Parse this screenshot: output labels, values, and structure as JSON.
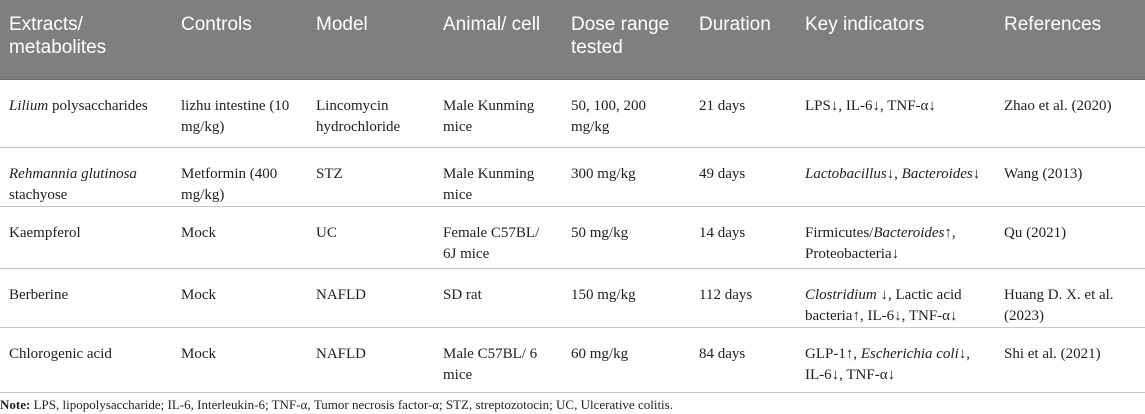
{
  "table": {
    "headers": [
      "Extracts/ metabolites",
      "Controls",
      "Model",
      "Animal/ cell",
      "Dose range tested",
      "Duration",
      "Key indicators",
      "References"
    ],
    "rows": [
      [
        "<i>Lilium</i> polysaccharides",
        "lizhu intestine (10 mg/kg)",
        "Lincomycin hydrochloride",
        "Male Kunming mice",
        "50, 100, 200 mg/kg",
        "21 days",
        "LPS↓, IL-6↓, TNF-α↓",
        "Zhao et al. (2020)"
      ],
      [
        "<i>Rehmannia glutinosa</i> stachyose",
        "Metformin (400 mg/kg)",
        "STZ",
        "Male Kunming mice",
        "300 mg/kg",
        "49 days",
        "<i>Lactobacillus</i>↓, <i>Bacteroides</i>↓",
        "Wang (2013)"
      ],
      [
        "Kaempferol",
        "Mock",
        "UC",
        "Female C57BL/ 6J mice",
        "50 mg/kg",
        "14 days",
        "Firmicutes/<i>Bacteroides</i>↑, Proteobacteria↓",
        "Qu (2021)"
      ],
      [
        "Berberine",
        "Mock",
        "NAFLD",
        "SD rat",
        "150 mg/kg",
        "112 days",
        "<i>Clostridium</i> ↓, Lactic acid bacteria↑, IL-6↓, TNF-α↓",
        "Huang D. X. et al. (2023)"
      ],
      [
        "Chlorogenic acid",
        "Mock",
        "NAFLD",
        "Male C57BL/ 6 mice",
        "60 mg/kg",
        "84 days",
        "GLP-1↑, <i>Escherichia coli</i>↓, IL-6↓, TNF-α↓",
        "Shi et al. (2021)"
      ]
    ]
  },
  "note": {
    "label": "Note:",
    "text": " LPS, lipopolysaccharide; IL-6, Interleukin-6; TNF-α, Tumor necrosis factor-α; STZ, streptozotocin; UC, Ulcerative colitis."
  }
}
